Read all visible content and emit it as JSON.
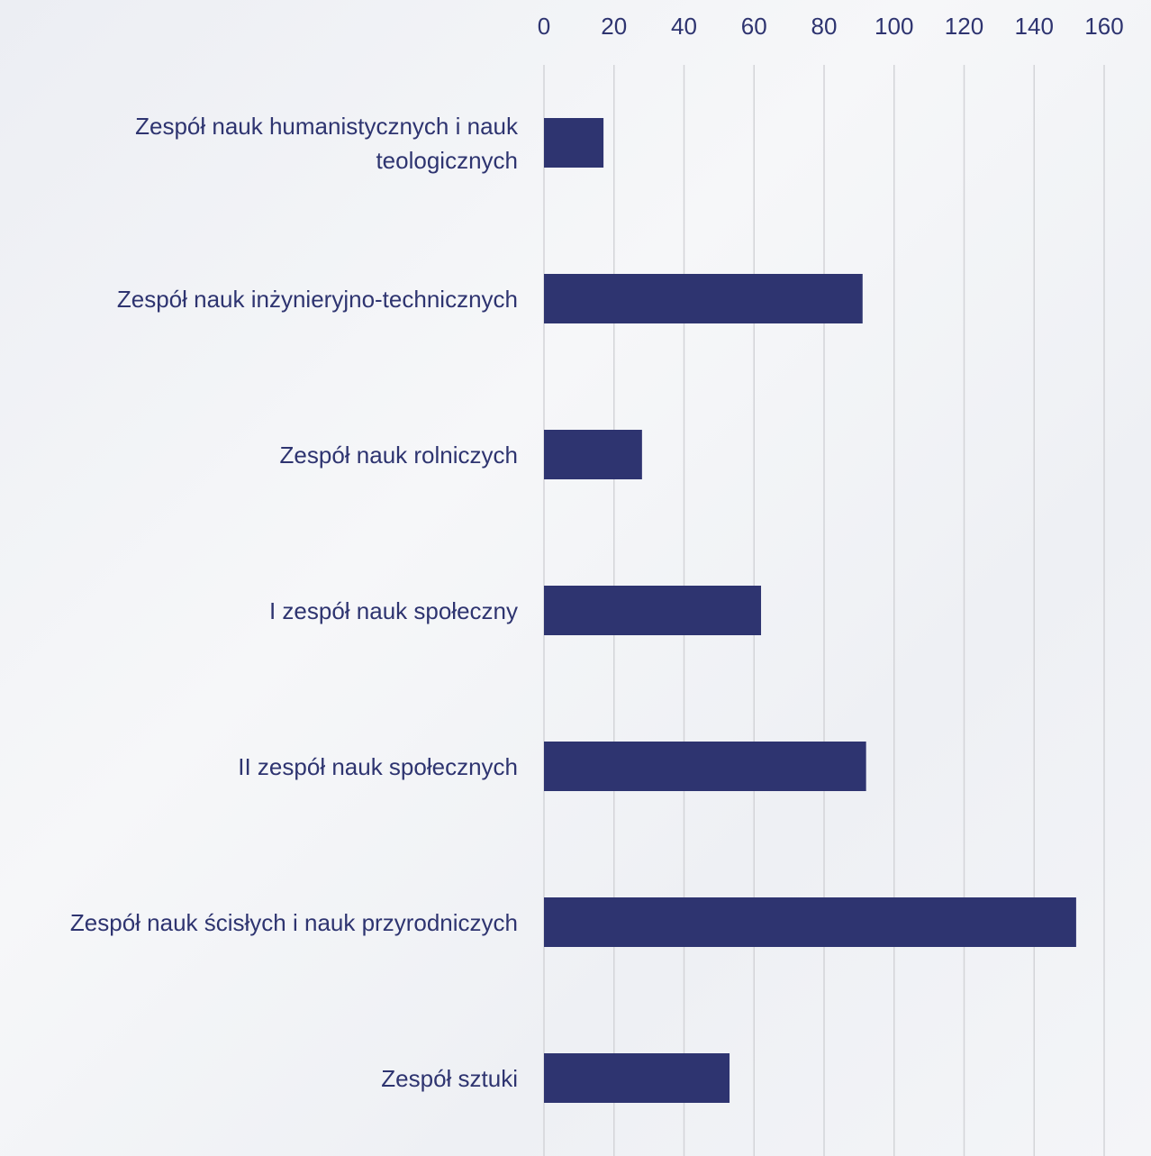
{
  "chart_data": {
    "type": "bar",
    "orientation": "horizontal",
    "categories": [
      "Zespół nauk humanistycznych i nauk teologicznych",
      "Zespół nauk inżynieryjno-technicznych",
      "Zespół nauk rolniczych",
      "I zespół nauk społeczny",
      "II zespół nauk społecznych",
      "Zespół nauk ścisłych i nauk przyrodniczych",
      "Zespół sztuki"
    ],
    "values": [
      17,
      91,
      28,
      62,
      92,
      152,
      53
    ],
    "color": "#2e3470",
    "xlim": [
      0,
      160
    ],
    "xticks": [
      0,
      20,
      40,
      60,
      80,
      100,
      120,
      140,
      160
    ],
    "grid": true
  }
}
